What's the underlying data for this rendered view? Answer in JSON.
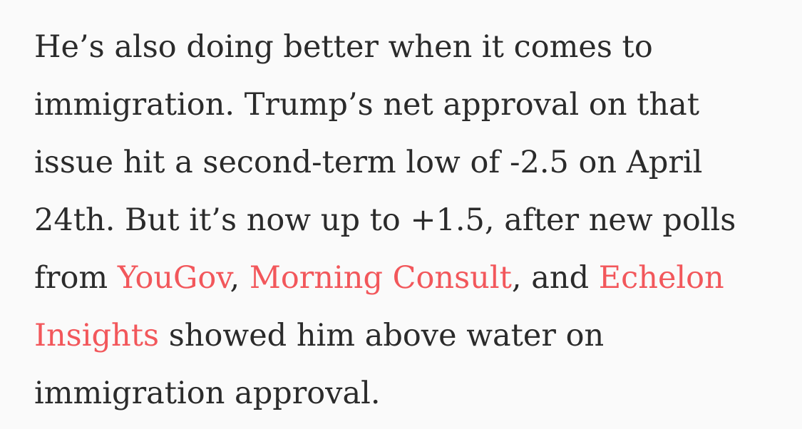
{
  "paragraph": {
    "l1": "He’s also doing better when it comes to",
    "l2": "immigration. Trump’s net approval on that",
    "l3": "issue hit a second-term low of -2.5 on April",
    "l4": "24th. But it’s now up to +1.5, after new polls",
    "l5_pre": "from ",
    "link_yougov": "YouGov",
    "sep1": ", ",
    "link_morning_consult": "Morning Consult",
    "sep2": ", and ",
    "link_echelon_1": "Echelon",
    "link_echelon_2": "Insights",
    "l6_post": " showed him above water on",
    "l7": "immigration approval."
  },
  "colors": {
    "text": "#2b2b2b",
    "link": "#f2575b",
    "background": "#fafafa"
  }
}
